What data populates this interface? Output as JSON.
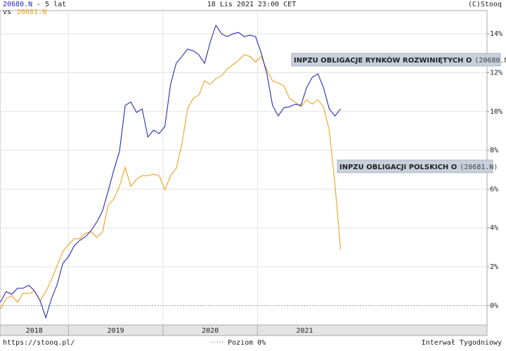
{
  "chart_data": {
    "type": "line",
    "header": {
      "period": "- 5 lat",
      "vs": "vs",
      "date": "18 Lis 2021 23:00 CET",
      "copyright": "(C)Stooq"
    },
    "footer": {
      "url": "https://stooq.pl/",
      "zero_line": "Poziom 0%",
      "interval": "Interwał Tygodniowy"
    },
    "x": [
      2018.28,
      2018.34,
      2018.4,
      2018.46,
      2018.52,
      2018.58,
      2018.64,
      2018.7,
      2018.76,
      2018.82,
      2018.88,
      2018.94,
      2019.0,
      2019.06,
      2019.12,
      2019.18,
      2019.24,
      2019.3,
      2019.36,
      2019.42,
      2019.48,
      2019.54,
      2019.6,
      2019.66,
      2019.72,
      2019.78,
      2019.84,
      2019.9,
      2019.96,
      2020.02,
      2020.08,
      2020.14,
      2020.2,
      2020.26,
      2020.32,
      2020.38,
      2020.44,
      2020.5,
      2020.56,
      2020.62,
      2020.68,
      2020.74,
      2020.8,
      2020.86,
      2020.92,
      2020.98,
      2021.04,
      2021.1,
      2021.16,
      2021.22,
      2021.28,
      2021.34,
      2021.4,
      2021.46,
      2021.52,
      2021.58,
      2021.64,
      2021.7,
      2021.76,
      2021.82,
      2021.88
    ],
    "series": [
      {
        "name": "INPZU OBLIGACJE RYNKÓW ROZWINIĘTYCH O",
        "code": "20680.N",
        "code_label": "(20680.N)",
        "color": "#2a2ab8",
        "values": [
          0.18,
          0.72,
          0.58,
          0.9,
          0.9,
          1.05,
          0.76,
          0.25,
          -0.62,
          0.36,
          1.09,
          2.17,
          2.53,
          3.08,
          3.36,
          3.55,
          3.87,
          4.31,
          4.88,
          5.9,
          6.98,
          7.96,
          10.31,
          10.49,
          9.95,
          10.13,
          8.68,
          9.04,
          8.86,
          9.23,
          11.4,
          12.48,
          12.84,
          13.21,
          13.13,
          12.92,
          12.48,
          13.57,
          14.44,
          14.0,
          13.86,
          14.0,
          14.07,
          13.86,
          13.93,
          13.86,
          13.02,
          11.94,
          10.31,
          9.77,
          10.2,
          10.24,
          10.38,
          10.31,
          11.22,
          11.76,
          11.94,
          11.22,
          10.13,
          9.77,
          10.13
        ]
      },
      {
        "name": "INPZU OBLIGACJI POLSKICH O",
        "code": "20681.N",
        "code_label": "(20681.N)",
        "color": "#f0a020",
        "values": [
          -0.18,
          0.36,
          0.51,
          0.18,
          0.65,
          0.62,
          0.76,
          0.25,
          0.72,
          1.34,
          2.06,
          2.79,
          3.15,
          3.44,
          3.44,
          3.73,
          3.8,
          3.51,
          3.8,
          5.17,
          5.5,
          6.15,
          7.13,
          6.15,
          6.51,
          6.69,
          6.69,
          6.77,
          6.69,
          5.97,
          6.69,
          7.06,
          8.32,
          10.13,
          10.67,
          10.85,
          11.58,
          11.4,
          11.69,
          11.83,
          12.19,
          12.41,
          12.63,
          12.92,
          12.84,
          12.55,
          12.84,
          12.12,
          11.58,
          11.47,
          11.32,
          10.67,
          10.49,
          10.24,
          10.6,
          10.38,
          10.6,
          10.24,
          9.04,
          6.26,
          2.9
        ]
      }
    ],
    "xlim": [
      2018.275,
      2023.43
    ],
    "xticks": [
      {
        "value": 2018,
        "label": "2018"
      },
      {
        "value": 2019,
        "label": "2019"
      },
      {
        "value": 2020,
        "label": "2020"
      },
      {
        "value": 2021,
        "label": "2021"
      }
    ],
    "ylim": [
      -1.0,
      15.2
    ],
    "yticks": [
      {
        "value": 0,
        "label": "0%"
      },
      {
        "value": 2,
        "label": "2%"
      },
      {
        "value": 4,
        "label": "4%"
      },
      {
        "value": 6,
        "label": "6%"
      },
      {
        "value": 8,
        "label": "8%"
      },
      {
        "value": 10,
        "label": "10%"
      },
      {
        "value": 12,
        "label": "12%"
      },
      {
        "value": 14,
        "label": "14%"
      }
    ],
    "grid": true
  }
}
